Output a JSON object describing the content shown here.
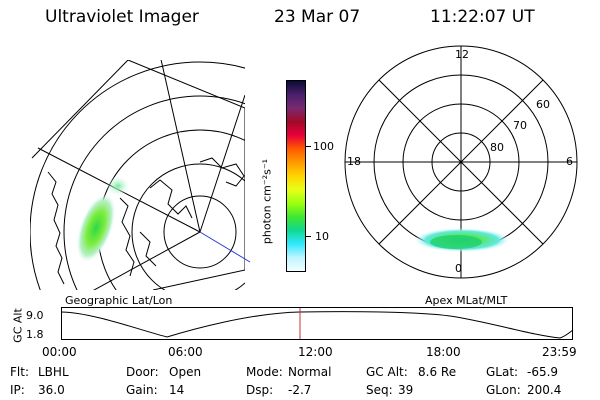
{
  "header": {
    "title": "Ultraviolet Imager",
    "date": "23 Mar 07",
    "time": "11:22:07 UT"
  },
  "colorbar": {
    "unit": "photon cm⁻²s⁻¹",
    "ticks": [
      "100",
      "10"
    ],
    "colors": [
      "#0b0b33",
      "#4a1f6e",
      "#7a2a6e",
      "#a00a28",
      "#e8003a",
      "#ff5a00",
      "#ff9a00",
      "#ffd400",
      "#e8ff1a",
      "#9cff10",
      "#40e830",
      "#10d890",
      "#30e8ff",
      "#bff5ff",
      "#f0ffff"
    ]
  },
  "geo_map": {
    "label": "Geographic Lat/Lon"
  },
  "polar_plot": {
    "label": "Apex MLat/MLT",
    "hour_labels": [
      "12",
      "18",
      "6",
      "0"
    ],
    "lat_labels": [
      "60",
      "70",
      "80"
    ]
  },
  "altitude_plot": {
    "ylabel": "GC Alt",
    "yticks": [
      "9.0",
      "1.8"
    ],
    "xticks": [
      "00:00",
      "06:00",
      "12:00",
      "18:00",
      "23:59"
    ],
    "marker_color": "#c83030"
  },
  "status": {
    "flt_label": "Flt:",
    "flt_value": "LBHL",
    "ip_label": "IP:",
    "ip_value": "36.0",
    "door_label": "Door:",
    "door_value": "Open",
    "gain_label": "Gain:",
    "gain_value": "14",
    "mode_label": "Mode:",
    "mode_value": "Normal",
    "dsp_label": "Dsp:",
    "dsp_value": "-2.7",
    "gcalt_label": "GC Alt:",
    "gcalt_value": "8.6 Re",
    "seq_label": "Seq:",
    "seq_value": "39",
    "glat_label": "GLat:",
    "glat_value": "-65.9",
    "glon_label": "GLon:",
    "glon_value": "200.4"
  }
}
